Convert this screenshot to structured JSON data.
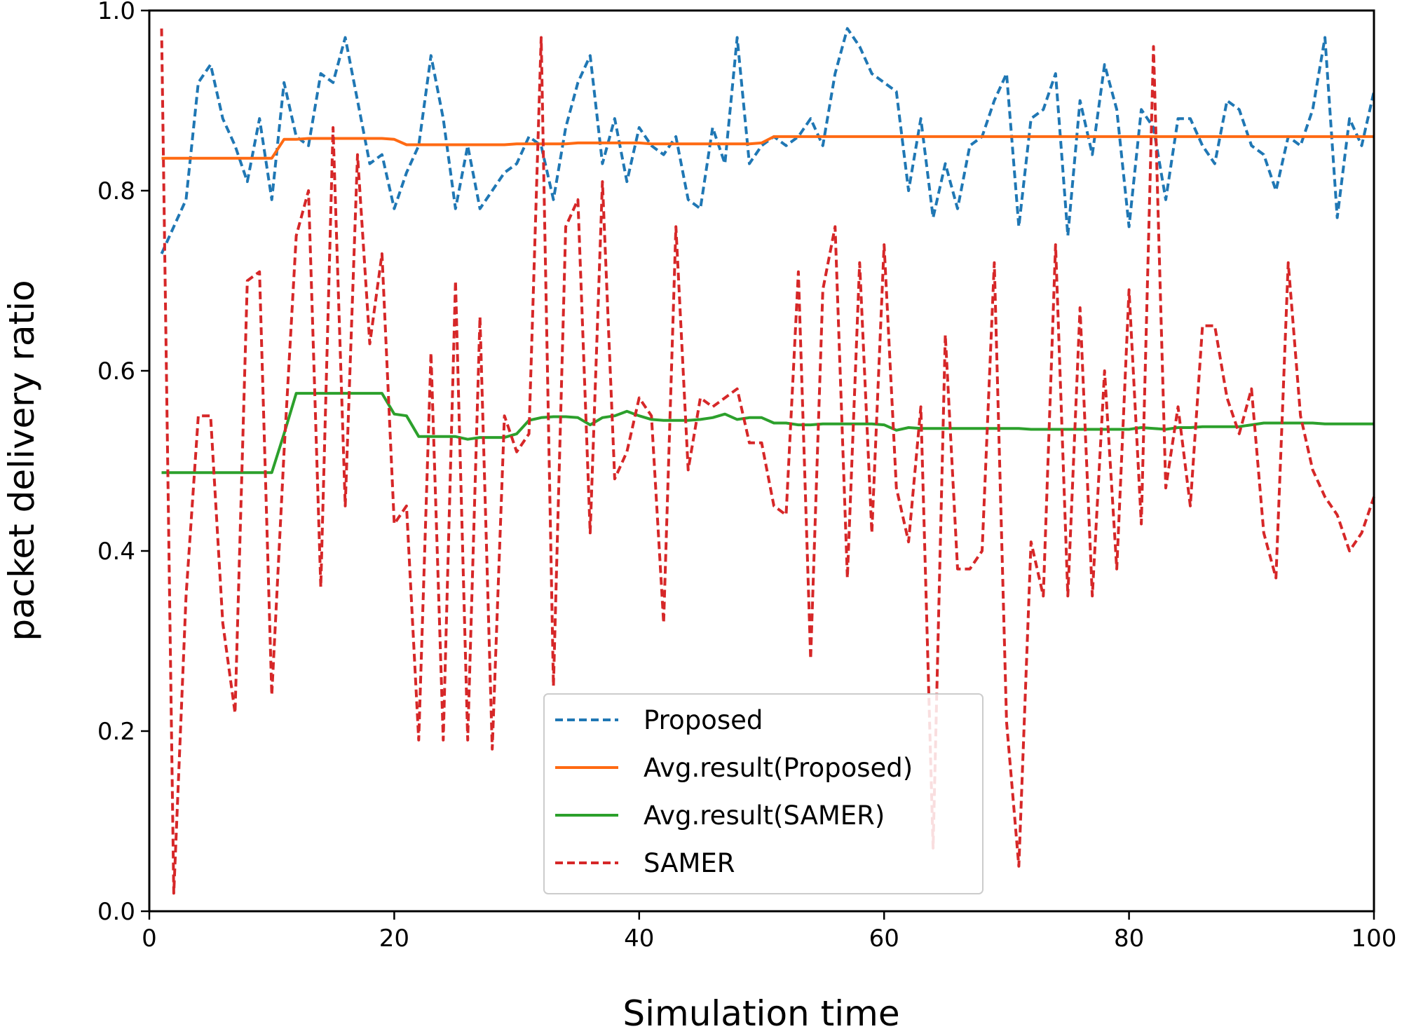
{
  "chart_data": {
    "type": "line",
    "title": "",
    "xlabel": "Simulation time",
    "ylabel": "packet delivery ratio",
    "xlim": [
      0,
      100
    ],
    "ylim": [
      0.0,
      1.0
    ],
    "xticks": [
      0,
      20,
      40,
      60,
      80,
      100
    ],
    "yticks": [
      0.0,
      0.2,
      0.4,
      0.6,
      0.8,
      1.0
    ],
    "xtick_labels": [
      "0",
      "20",
      "40",
      "60",
      "80",
      "100"
    ],
    "ytick_labels": [
      "0.0",
      "0.2",
      "0.4",
      "0.6",
      "0.8",
      "1.0"
    ],
    "grid": false,
    "legend_position": "bottom-center",
    "x": [
      1,
      2,
      3,
      4,
      5,
      6,
      7,
      8,
      9,
      10,
      11,
      12,
      13,
      14,
      15,
      16,
      17,
      18,
      19,
      20,
      21,
      22,
      23,
      24,
      25,
      26,
      27,
      28,
      29,
      30,
      31,
      32,
      33,
      34,
      35,
      36,
      37,
      38,
      39,
      40,
      41,
      42,
      43,
      44,
      45,
      46,
      47,
      48,
      49,
      50,
      51,
      52,
      53,
      54,
      55,
      56,
      57,
      58,
      59,
      60,
      61,
      62,
      63,
      64,
      65,
      66,
      67,
      68,
      69,
      70,
      71,
      72,
      73,
      74,
      75,
      76,
      77,
      78,
      79,
      80,
      81,
      82,
      83,
      84,
      85,
      86,
      87,
      88,
      89,
      90,
      91,
      92,
      93,
      94,
      95,
      96,
      97,
      98,
      99,
      100
    ],
    "series": [
      {
        "name": "Proposed",
        "style": "dashed",
        "color": "#1f77b4",
        "values": [
          0.73,
          0.76,
          0.79,
          0.92,
          0.94,
          0.88,
          0.85,
          0.81,
          0.88,
          0.79,
          0.92,
          0.86,
          0.85,
          0.93,
          0.92,
          0.97,
          0.9,
          0.83,
          0.84,
          0.78,
          0.82,
          0.85,
          0.95,
          0.88,
          0.78,
          0.85,
          0.78,
          0.8,
          0.82,
          0.83,
          0.86,
          0.85,
          0.79,
          0.87,
          0.92,
          0.95,
          0.83,
          0.88,
          0.81,
          0.87,
          0.85,
          0.84,
          0.86,
          0.79,
          0.78,
          0.87,
          0.83,
          0.97,
          0.83,
          0.85,
          0.86,
          0.85,
          0.86,
          0.88,
          0.85,
          0.93,
          0.98,
          0.96,
          0.93,
          0.92,
          0.91,
          0.8,
          0.88,
          0.77,
          0.83,
          0.78,
          0.85,
          0.86,
          0.9,
          0.93,
          0.76,
          0.88,
          0.89,
          0.93,
          0.75,
          0.9,
          0.84,
          0.94,
          0.89,
          0.76,
          0.89,
          0.87,
          0.79,
          0.88,
          0.88,
          0.85,
          0.83,
          0.9,
          0.89,
          0.85,
          0.84,
          0.8,
          0.86,
          0.85,
          0.89,
          0.97,
          0.77,
          0.88,
          0.85,
          0.91
        ]
      },
      {
        "name": "Avg.result(Proposed)",
        "style": "solid",
        "color": "#ff6a13",
        "values": [
          0.836,
          0.836,
          0.836,
          0.836,
          0.836,
          0.836,
          0.836,
          0.836,
          0.836,
          0.836,
          0.857,
          0.857,
          0.858,
          0.858,
          0.858,
          0.858,
          0.858,
          0.858,
          0.858,
          0.857,
          0.851,
          0.851,
          0.851,
          0.851,
          0.851,
          0.851,
          0.851,
          0.851,
          0.851,
          0.852,
          0.852,
          0.852,
          0.852,
          0.852,
          0.853,
          0.853,
          0.853,
          0.853,
          0.853,
          0.853,
          0.852,
          0.852,
          0.852,
          0.852,
          0.852,
          0.852,
          0.852,
          0.852,
          0.852,
          0.853,
          0.86,
          0.86,
          0.86,
          0.86,
          0.86,
          0.86,
          0.86,
          0.86,
          0.86,
          0.86,
          0.86,
          0.86,
          0.86,
          0.86,
          0.86,
          0.86,
          0.86,
          0.86,
          0.86,
          0.86,
          0.86,
          0.86,
          0.86,
          0.86,
          0.86,
          0.86,
          0.86,
          0.86,
          0.86,
          0.86,
          0.86,
          0.86,
          0.86,
          0.86,
          0.86,
          0.86,
          0.86,
          0.86,
          0.86,
          0.86,
          0.86,
          0.86,
          0.86,
          0.86,
          0.86,
          0.86,
          0.86,
          0.86,
          0.86,
          0.86
        ]
      },
      {
        "name": "Avg.result(SAMER)",
        "style": "solid",
        "color": "#2ca02c",
        "values": [
          0.487,
          0.487,
          0.487,
          0.487,
          0.487,
          0.487,
          0.487,
          0.487,
          0.487,
          0.487,
          0.53,
          0.575,
          0.575,
          0.575,
          0.575,
          0.575,
          0.575,
          0.575,
          0.575,
          0.552,
          0.55,
          0.527,
          0.527,
          0.527,
          0.527,
          0.524,
          0.526,
          0.526,
          0.526,
          0.53,
          0.545,
          0.548,
          0.549,
          0.549,
          0.548,
          0.54,
          0.548,
          0.55,
          0.555,
          0.55,
          0.546,
          0.545,
          0.545,
          0.545,
          0.546,
          0.548,
          0.552,
          0.546,
          0.548,
          0.548,
          0.542,
          0.542,
          0.54,
          0.54,
          0.541,
          0.541,
          0.541,
          0.541,
          0.541,
          0.54,
          0.534,
          0.537,
          0.536,
          0.536,
          0.536,
          0.536,
          0.536,
          0.536,
          0.536,
          0.536,
          0.536,
          0.535,
          0.535,
          0.535,
          0.535,
          0.535,
          0.535,
          0.535,
          0.535,
          0.535,
          0.537,
          0.536,
          0.535,
          0.537,
          0.537,
          0.538,
          0.538,
          0.538,
          0.538,
          0.54,
          0.542,
          0.542,
          0.542,
          0.542,
          0.542,
          0.541,
          0.541,
          0.541,
          0.541,
          0.541
        ]
      },
      {
        "name": "SAMER",
        "style": "dashed",
        "color": "#d62728",
        "values": [
          0.98,
          0.02,
          0.35,
          0.55,
          0.55,
          0.32,
          0.22,
          0.7,
          0.71,
          0.24,
          0.51,
          0.75,
          0.8,
          0.36,
          0.87,
          0.45,
          0.84,
          0.63,
          0.73,
          0.43,
          0.45,
          0.19,
          0.62,
          0.19,
          0.7,
          0.19,
          0.66,
          0.18,
          0.55,
          0.51,
          0.53,
          0.97,
          0.25,
          0.76,
          0.79,
          0.42,
          0.81,
          0.48,
          0.51,
          0.57,
          0.55,
          0.32,
          0.76,
          0.49,
          0.57,
          0.56,
          0.57,
          0.58,
          0.52,
          0.52,
          0.45,
          0.44,
          0.71,
          0.28,
          0.69,
          0.76,
          0.37,
          0.72,
          0.42,
          0.74,
          0.47,
          0.41,
          0.56,
          0.07,
          0.64,
          0.38,
          0.38,
          0.4,
          0.72,
          0.21,
          0.05,
          0.41,
          0.35,
          0.74,
          0.35,
          0.67,
          0.35,
          0.6,
          0.38,
          0.69,
          0.43,
          0.96,
          0.47,
          0.56,
          0.45,
          0.65,
          0.65,
          0.57,
          0.53,
          0.58,
          0.42,
          0.37,
          0.72,
          0.55,
          0.49,
          0.46,
          0.44,
          0.4,
          0.42,
          0.46
        ]
      }
    ]
  }
}
